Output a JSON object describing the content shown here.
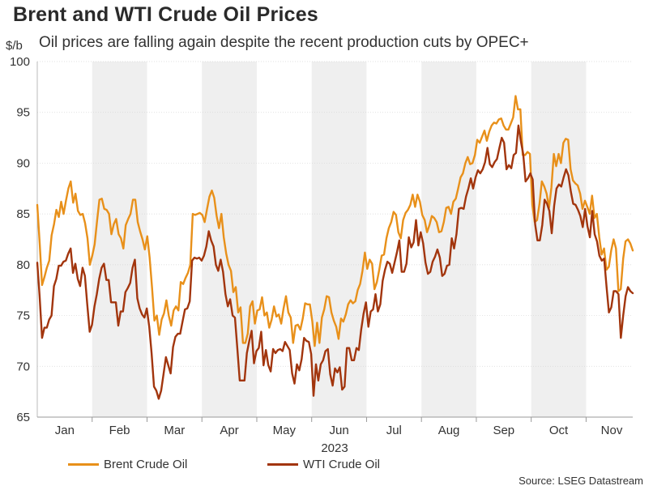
{
  "chart_data": {
    "type": "line",
    "title": "Brent and WTI Crude Oil Prices",
    "subtitle": "Oil prices are falling again despite the recent production cuts by OPEC+",
    "ylabel": "$/b",
    "xlabel": "2023",
    "ylim": [
      65,
      100
    ],
    "yticks": [
      65,
      70,
      75,
      80,
      85,
      90,
      95,
      100
    ],
    "months": [
      "Jan",
      "Feb",
      "Mar",
      "Apr",
      "May",
      "Jun",
      "Jul",
      "Aug",
      "Sep",
      "Oct",
      "Nov"
    ],
    "shaded_months": [
      "Feb",
      "Apr",
      "Jun",
      "Aug",
      "Oct"
    ],
    "source": "Source: LSEG Datastream",
    "series": [
      {
        "name": "Brent Crude Oil",
        "color": "#e8901a",
        "values": [
          85.9,
          82.1,
          78.0,
          78.8,
          79.7,
          80.4,
          82.9,
          84.0,
          85.4,
          84.7,
          86.2,
          85.0,
          86.3,
          87.5,
          88.2,
          86.1,
          87.0,
          85.3,
          84.9,
          85.0,
          84.1,
          82.6,
          80.0,
          80.9,
          82.0,
          84.3,
          86.4,
          86.5,
          85.5,
          85.4,
          85.0,
          83.0,
          84.0,
          84.5,
          83.0,
          82.6,
          81.6,
          83.9,
          84.5,
          85.0,
          86.4,
          86.4,
          84.2,
          83.3,
          82.5,
          81.5,
          82.8,
          80.7,
          77.7,
          74.5,
          75.0,
          73.1,
          74.6,
          75.2,
          76.5,
          75.0,
          74.0,
          75.5,
          75.9,
          75.5,
          78.3,
          78.1,
          78.7,
          79.2,
          80.0,
          85.0,
          84.9,
          85.0,
          85.1,
          84.9,
          84.2,
          85.5,
          86.7,
          87.3,
          86.6,
          84.8,
          83.6,
          85.0,
          82.7,
          81.1,
          80.0,
          79.4,
          77.3,
          77.8,
          75.3,
          75.8,
          72.3,
          72.3,
          73.2,
          75.9,
          76.4,
          74.2,
          75.5,
          75.6,
          76.8,
          75.0,
          75.3,
          73.8,
          74.6,
          75.9,
          74.9,
          75.1,
          74.2,
          75.7,
          76.9,
          75.3,
          74.8,
          72.3,
          74.0,
          74.1,
          73.6,
          74.7,
          76.2,
          76.1,
          76.1,
          74.4,
          72.0,
          74.3,
          72.3,
          74.8,
          75.6,
          76.9,
          76.8,
          75.3,
          74.5,
          73.9,
          72.7,
          74.7,
          74.4,
          75.1,
          76.1,
          76.5,
          76.2,
          76.4,
          77.5,
          78.1,
          79.4,
          81.2,
          79.6,
          80.5,
          80.1,
          77.6,
          78.3,
          79.5,
          80.9,
          81.0,
          82.6,
          83.6,
          84.2,
          85.2,
          84.9,
          83.2,
          82.6,
          84.4,
          85.1,
          85.4,
          85.9,
          86.9,
          85.7,
          86.9,
          86.2,
          84.9,
          84.4,
          83.2,
          83.9,
          84.8,
          84.6,
          84.2,
          83.2,
          83.3,
          84.2,
          85.6,
          85.7,
          85.0,
          86.2,
          86.5,
          87.5,
          88.6,
          89.0,
          90.0,
          90.6,
          89.9,
          90.0,
          90.8,
          92.3,
          92.0,
          92.6,
          93.2,
          92.2,
          93.1,
          93.7,
          94.0,
          93.9,
          94.3,
          94.4,
          93.7,
          93.3,
          93.3,
          93.9,
          94.5,
          96.6,
          95.3,
          95.3,
          90.8,
          90.8,
          91.1,
          90.9,
          85.9,
          84.2,
          84.4,
          86.0,
          88.2,
          87.7,
          87.0,
          85.6,
          87.6,
          90.9,
          89.7,
          90.9,
          90.0,
          92.0,
          92.4,
          92.3,
          89.4,
          88.3,
          88.0,
          87.8,
          87.0,
          85.5,
          86.3,
          85.7,
          85.0,
          86.8,
          84.6,
          85.0,
          82.7,
          81.0,
          81.6,
          79.5,
          79.8,
          81.4,
          82.5,
          81.6,
          77.4,
          77.6,
          80.6,
          82.3,
          82.5,
          82.1,
          81.4
        ]
      },
      {
        "name": "WTI Crude Oil",
        "color": "#a2350d",
        "values": [
          80.2,
          76.9,
          72.8,
          73.8,
          73.8,
          74.6,
          75.0,
          77.9,
          78.6,
          79.9,
          79.9,
          80.3,
          80.4,
          81.1,
          81.6,
          79.2,
          80.1,
          78.6,
          77.9,
          79.7,
          78.9,
          76.1,
          73.4,
          74.1,
          75.9,
          77.1,
          78.6,
          79.7,
          80.1,
          78.5,
          78.5,
          76.3,
          76.3,
          76.3,
          74.0,
          75.4,
          75.4,
          77.3,
          77.7,
          78.2,
          79.7,
          80.5,
          76.7,
          75.7,
          75.1,
          74.8,
          75.7,
          73.9,
          71.3,
          68.0,
          67.6,
          66.8,
          67.6,
          69.2,
          70.9,
          70.1,
          69.3,
          71.9,
          72.9,
          73.2,
          73.2,
          74.4,
          75.6,
          75.7,
          76.4,
          80.4,
          80.7,
          80.6,
          80.7,
          80.4,
          80.9,
          81.8,
          83.3,
          82.4,
          81.8,
          80.0,
          79.4,
          80.5,
          79.3,
          77.1,
          75.9,
          76.6,
          75.0,
          74.8,
          71.7,
          68.6,
          68.6,
          68.6,
          71.3,
          72.5,
          73.5,
          70.3,
          71.5,
          71.8,
          73.4,
          70.1,
          71.6,
          70.1,
          69.5,
          71.7,
          71.3,
          71.6,
          71.7,
          71.5,
          72.4,
          72.0,
          71.6,
          69.3,
          68.3,
          70.2,
          69.6,
          70.7,
          72.8,
          72.5,
          72.4,
          71.2,
          67.1,
          70.2,
          68.6,
          70.2,
          70.6,
          71.5,
          71.7,
          69.2,
          68.1,
          69.8,
          69.4,
          69.9,
          67.7,
          68.0,
          71.8,
          71.8,
          70.6,
          70.6,
          71.8,
          71.6,
          73.6,
          75.2,
          76.3,
          73.9,
          75.4,
          75.6,
          77.1,
          75.4,
          76.1,
          78.4,
          79.5,
          80.3,
          80.1,
          79.2,
          80.2,
          81.2,
          82.4,
          79.3,
          79.3,
          80.1,
          82.7,
          81.7,
          82.2,
          84.4,
          81.9,
          83.2,
          82.1,
          80.2,
          79.1,
          79.3,
          80.3,
          80.8,
          81.5,
          80.7,
          78.9,
          79.1,
          79.9,
          80.0,
          82.6,
          81.6,
          83.0,
          85.5,
          85.6,
          85.5,
          86.7,
          87.5,
          88.5,
          87.5,
          88.6,
          89.3,
          89.0,
          89.4,
          90.1,
          91.5,
          89.9,
          89.6,
          90.1,
          90.4,
          91.5,
          92.5,
          92.0,
          89.4,
          89.8,
          89.5,
          90.8,
          91.0,
          93.7,
          92.2,
          90.9,
          88.2,
          88.5,
          89.0,
          88.4,
          84.0,
          82.4,
          82.4,
          83.9,
          86.4,
          86.0,
          85.3,
          83.1,
          85.8,
          87.5,
          87.9,
          87.7,
          88.6,
          89.4,
          88.8,
          87.2,
          86.0,
          85.9,
          85.4,
          84.8,
          83.7,
          85.5,
          83.8,
          82.7,
          85.3,
          83.0,
          82.3,
          80.9,
          80.4,
          80.6,
          77.8,
          75.3,
          75.8,
          77.4,
          77.4,
          77.1,
          72.8,
          75.0,
          76.9,
          77.8,
          77.4,
          77.2
        ]
      }
    ]
  }
}
